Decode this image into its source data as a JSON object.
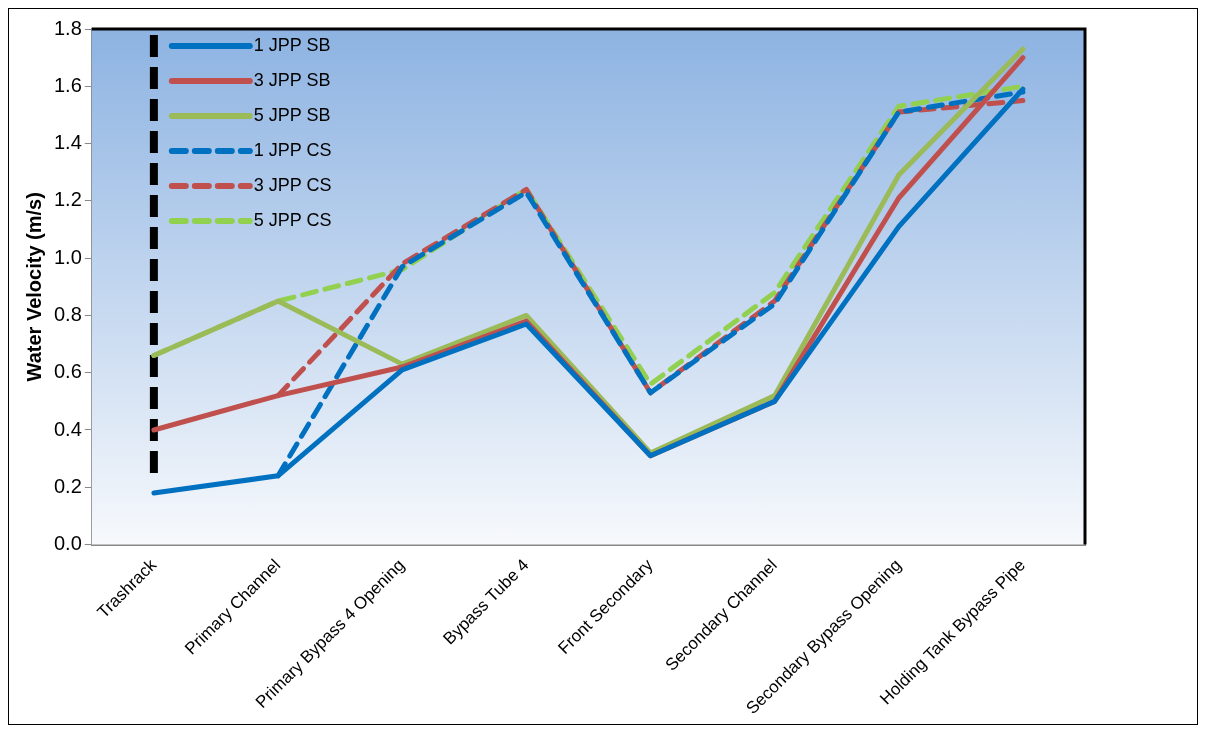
{
  "chart_data": {
    "type": "line",
    "ylabel": "Water Velocity (m/s)",
    "categories": [
      "Trashrack",
      "Primary Channel",
      "Primary Bypass 4 Opening",
      "Bypass Tube 4",
      "Front Secondary",
      "Secondary Channel",
      "Secondary Bypass Opening",
      "Holding Tank Bypass Pipe"
    ],
    "series": [
      {
        "name": "1 JPP SB",
        "color": "#0070c0",
        "line_style": "solid",
        "values": [
          0.18,
          0.24,
          0.61,
          0.77,
          0.31,
          0.5,
          1.11,
          1.59
        ]
      },
      {
        "name": "3 JPP SB",
        "color": "#c0504d",
        "line_style": "solid",
        "values": [
          0.4,
          0.52,
          0.62,
          0.78,
          0.31,
          0.5,
          1.21,
          1.7
        ]
      },
      {
        "name": "5 JPP SB",
        "color": "#9bbb59",
        "line_style": "solid",
        "values": [
          0.66,
          0.85,
          0.63,
          0.8,
          0.32,
          0.52,
          1.29,
          1.73
        ]
      },
      {
        "name": "1 JPP CS",
        "color": "#0070c0",
        "line_style": "dashed",
        "values": [
          null,
          0.24,
          0.97,
          1.23,
          0.53,
          0.84,
          1.51,
          1.58
        ]
      },
      {
        "name": "3 JPP CS",
        "color": "#c0504d",
        "line_style": "dashed",
        "values": [
          null,
          0.52,
          0.98,
          1.24,
          0.53,
          0.85,
          1.51,
          1.55
        ]
      },
      {
        "name": "5 JPP CS",
        "color": "#92d050",
        "line_style": "dashed",
        "values": [
          0.66,
          0.85,
          0.96,
          1.24,
          0.56,
          0.88,
          1.53,
          1.6
        ]
      }
    ],
    "ylim": [
      0,
      1.8
    ],
    "yticks": [
      {
        "value": 0,
        "label": "0.0"
      },
      {
        "value": 0.2,
        "label": "0.2"
      },
      {
        "value": 0.4,
        "label": "0.4"
      },
      {
        "value": 0.6,
        "label": "0.6"
      },
      {
        "value": 0.8,
        "label": "0.8"
      },
      {
        "value": 1,
        "label": "1.0"
      },
      {
        "value": 1.2,
        "label": "1.2"
      },
      {
        "value": 1.4,
        "label": "1.4"
      },
      {
        "value": 1.6,
        "label": "1.6"
      },
      {
        "value": 1.8,
        "label": "1.8"
      }
    ],
    "ref_lines": [
      {
        "axis": "x",
        "value": "Trashrack",
        "color": "#000000",
        "line_style": "dashed"
      }
    ],
    "grid": false,
    "legend": "top left",
    "marker": "none"
  }
}
